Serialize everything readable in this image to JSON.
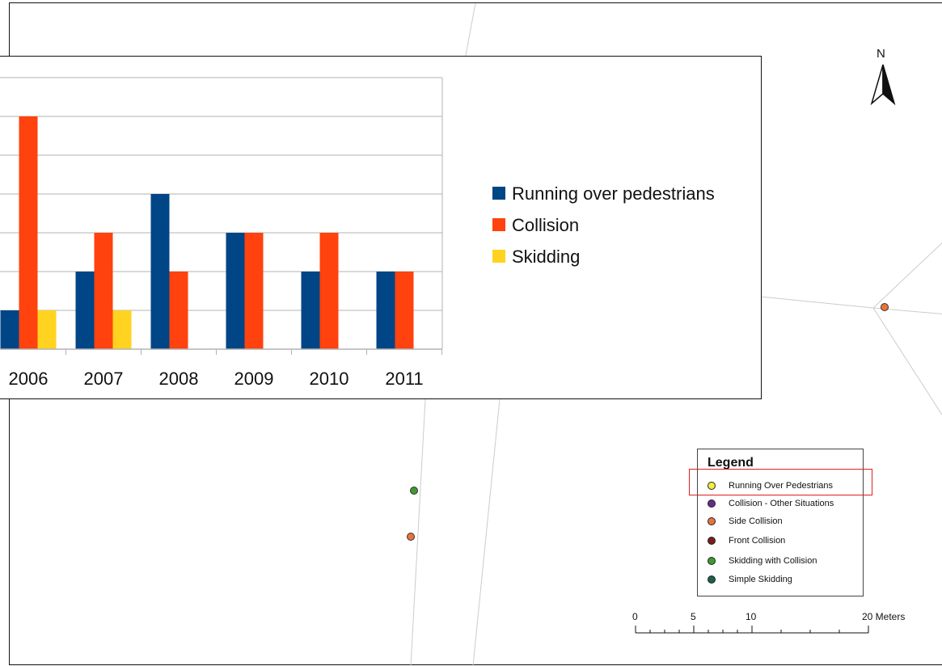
{
  "north_label": "N",
  "legend": {
    "title": "Legend",
    "items": [
      {
        "label": "Running Over Pedestrians",
        "color": "#f2ee3a"
      },
      {
        "label": "Collision - Other Situations",
        "color": "#6a2a8a"
      },
      {
        "label": "Side Collision",
        "color": "#e8743b"
      },
      {
        "label": "Front Collision",
        "color": "#7a1e1e"
      },
      {
        "label": "Skidding with Collision",
        "color": "#3f9a2e"
      },
      {
        "label": "Simple Skidding",
        "color": "#1f5e4e"
      }
    ]
  },
  "scale_bar": {
    "labels": [
      "0",
      "5",
      "10",
      "20 Meters"
    ]
  },
  "map_points": [
    {
      "name": "side-collision-point-east",
      "type": "Side Collision"
    },
    {
      "name": "skidding-with-collision-point",
      "type": "Skidding with Collision"
    },
    {
      "name": "side-collision-point-south",
      "type": "Side Collision"
    }
  ],
  "chart_data": {
    "type": "bar",
    "categories": [
      "2006",
      "2007",
      "2008",
      "2009",
      "2010",
      "2011"
    ],
    "series": [
      {
        "name": "Running over pedestrians",
        "color": "#004586",
        "values": [
          1,
          2,
          4,
          3,
          2,
          2
        ]
      },
      {
        "name": "Collision",
        "color": "#ff420e",
        "values": [
          6,
          3,
          2,
          3,
          3,
          2
        ]
      },
      {
        "name": "Skidding",
        "color": "#ffd320",
        "values": [
          1,
          1,
          0,
          0,
          0,
          0
        ]
      }
    ],
    "ylim": [
      0,
      7
    ],
    "grid": true,
    "legend_position": "right"
  }
}
